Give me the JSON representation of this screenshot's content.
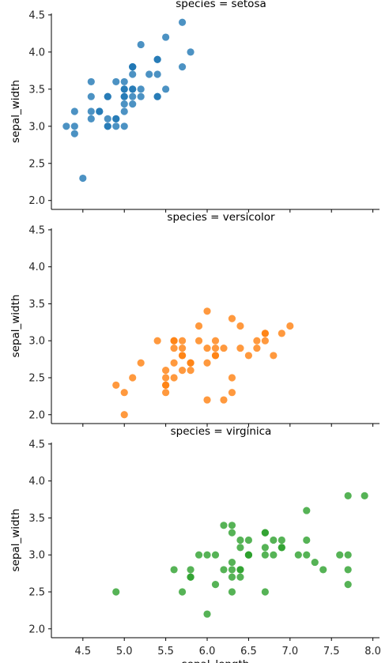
{
  "chart_data": [
    {
      "type": "scatter",
      "title": "species = setosa",
      "ylabel": "sepal_width",
      "xlabel": "",
      "xlim": [
        4.12,
        8.08
      ],
      "ylim": [
        1.88,
        4.52
      ],
      "yticks": [
        "2.0",
        "2.5",
        "3.0",
        "3.5",
        "4.0",
        "4.5"
      ],
      "xticks": [],
      "color": "#1f77b4",
      "series": [
        {
          "x": [
            5.1,
            4.9,
            4.7,
            4.6,
            5.0,
            5.4,
            4.6,
            5.0,
            4.4,
            4.9,
            5.4,
            4.8,
            4.8,
            4.3,
            5.8,
            5.7,
            5.4,
            5.1,
            5.7,
            5.1,
            5.4,
            5.1,
            4.6,
            5.1,
            4.8,
            5.0,
            5.0,
            5.2,
            5.2,
            4.7,
            4.8,
            5.4,
            5.2,
            5.5,
            4.9,
            5.0,
            5.5,
            4.9,
            4.4,
            5.1,
            5.0,
            4.5,
            4.4,
            5.0,
            5.1,
            4.8,
            5.1,
            4.6,
            5.3,
            5.0
          ],
          "y": [
            3.5,
            3.0,
            3.2,
            3.1,
            3.6,
            3.9,
            3.4,
            3.4,
            2.9,
            3.1,
            3.7,
            3.4,
            3.0,
            3.0,
            4.0,
            4.4,
            3.9,
            3.5,
            3.8,
            3.8,
            3.4,
            3.7,
            3.6,
            3.3,
            3.4,
            3.0,
            3.4,
            3.5,
            3.4,
            3.2,
            3.1,
            3.4,
            4.1,
            4.2,
            3.1,
            3.2,
            3.5,
            3.6,
            3.0,
            3.4,
            3.5,
            2.3,
            3.2,
            3.5,
            3.8,
            3.0,
            3.8,
            3.2,
            3.7,
            3.3
          ]
        }
      ]
    },
    {
      "type": "scatter",
      "title": "species = versicolor",
      "ylabel": "sepal_width",
      "xlabel": "",
      "xlim": [
        4.12,
        8.08
      ],
      "ylim": [
        1.88,
        4.52
      ],
      "yticks": [
        "2.0",
        "2.5",
        "3.0",
        "3.5",
        "4.0",
        "4.5"
      ],
      "xticks": [],
      "color": "#ff7f0e",
      "series": [
        {
          "x": [
            7.0,
            6.4,
            6.9,
            5.5,
            6.5,
            5.7,
            6.3,
            4.9,
            6.6,
            5.2,
            5.0,
            5.9,
            6.0,
            6.1,
            5.6,
            6.7,
            5.6,
            5.8,
            6.2,
            5.6,
            5.9,
            6.1,
            6.3,
            6.1,
            6.4,
            6.6,
            6.8,
            6.7,
            6.0,
            5.7,
            5.5,
            5.5,
            5.8,
            6.0,
            5.4,
            6.0,
            6.7,
            6.3,
            5.6,
            5.5,
            5.5,
            6.1,
            5.8,
            5.0,
            5.6,
            5.7,
            5.7,
            6.2,
            5.1,
            5.7
          ],
          "y": [
            3.2,
            3.2,
            3.1,
            2.3,
            2.8,
            2.8,
            3.3,
            2.4,
            2.9,
            2.7,
            2.0,
            3.0,
            2.2,
            2.9,
            2.9,
            3.1,
            3.0,
            2.7,
            2.2,
            2.5,
            3.2,
            2.8,
            2.5,
            2.8,
            2.9,
            3.0,
            2.8,
            3.0,
            2.9,
            2.6,
            2.4,
            2.4,
            2.7,
            2.7,
            3.0,
            3.4,
            3.1,
            2.3,
            3.0,
            2.5,
            2.6,
            3.0,
            2.6,
            2.3,
            2.7,
            3.0,
            2.9,
            2.9,
            2.5,
            2.8
          ]
        }
      ]
    },
    {
      "type": "scatter",
      "title": "species = virginica",
      "ylabel": "sepal_width",
      "xlabel": "sepal_length",
      "xlim": [
        4.12,
        8.08
      ],
      "ylim": [
        1.88,
        4.52
      ],
      "yticks": [
        "2.0",
        "2.5",
        "3.0",
        "3.5",
        "4.0",
        "4.5"
      ],
      "xticks": [
        "4.5",
        "5.0",
        "5.5",
        "6.0",
        "6.5",
        "7.0",
        "7.5",
        "8.0"
      ],
      "color": "#2ca02c",
      "series": [
        {
          "x": [
            6.3,
            5.8,
            7.1,
            6.3,
            6.5,
            7.6,
            4.9,
            7.3,
            6.7,
            7.2,
            6.5,
            6.4,
            6.8,
            5.7,
            5.8,
            6.4,
            6.5,
            7.7,
            7.7,
            6.0,
            6.9,
            5.6,
            7.7,
            6.3,
            6.7,
            7.2,
            6.2,
            6.1,
            6.4,
            7.2,
            7.4,
            7.9,
            6.4,
            6.3,
            6.1,
            7.7,
            6.3,
            6.4,
            6.0,
            6.9,
            6.7,
            6.9,
            5.8,
            6.8,
            6.7,
            6.7,
            6.3,
            6.5,
            6.2,
            5.9
          ],
          "y": [
            3.3,
            2.7,
            3.0,
            2.9,
            3.0,
            3.0,
            2.5,
            2.9,
            2.5,
            3.6,
            3.2,
            2.7,
            3.0,
            2.5,
            2.8,
            3.2,
            3.0,
            3.8,
            2.6,
            2.2,
            3.2,
            2.8,
            2.8,
            2.7,
            3.3,
            3.2,
            2.8,
            3.0,
            2.8,
            3.0,
            2.8,
            3.8,
            2.8,
            2.8,
            2.6,
            3.0,
            3.4,
            3.1,
            3.0,
            3.1,
            3.1,
            3.1,
            2.7,
            3.2,
            3.3,
            3.0,
            2.5,
            3.0,
            3.4,
            3.0
          ]
        }
      ]
    }
  ]
}
